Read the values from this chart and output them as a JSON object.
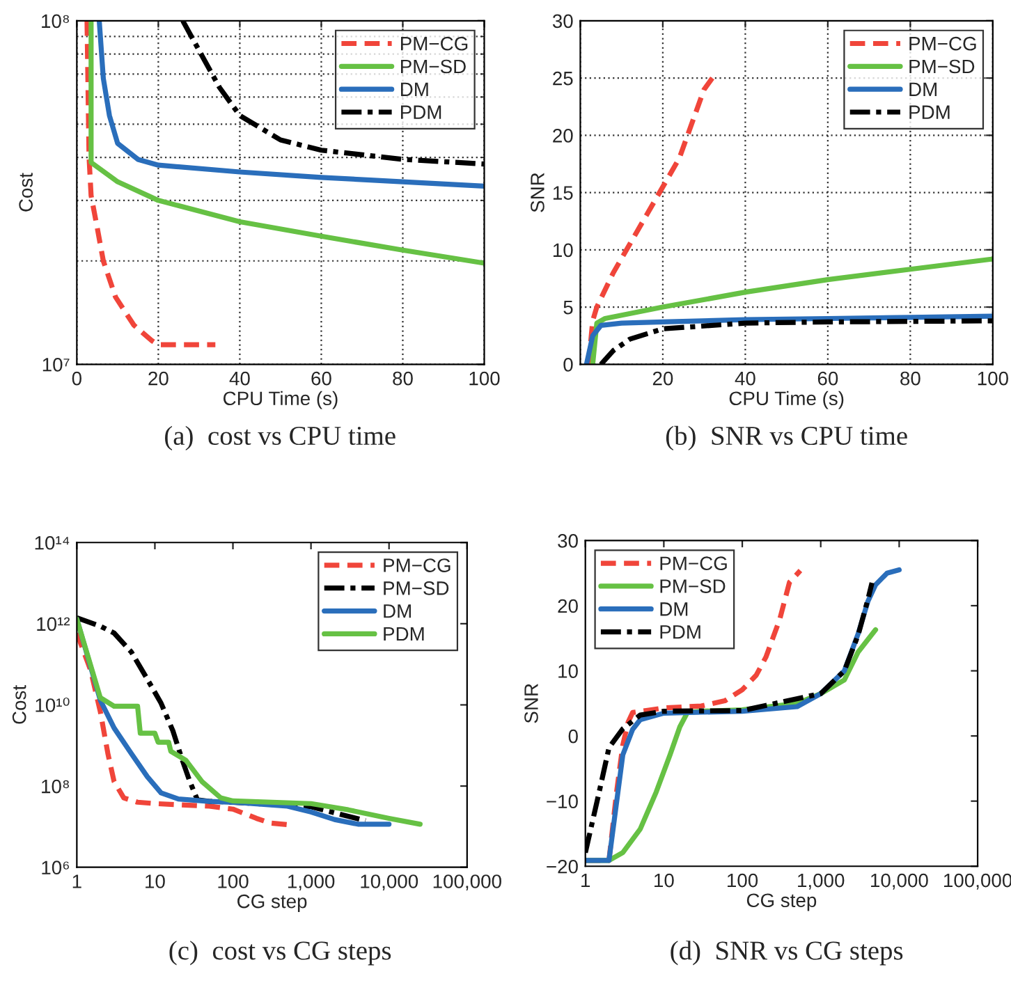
{
  "chart_data": [
    {
      "type": "line",
      "xlabel": "CPU Time (s)",
      "ylabel": "Cost",
      "log": "y",
      "grid": true,
      "legend": "top right",
      "xlim": [
        0,
        100
      ],
      "xticks": [
        0,
        20,
        40,
        60,
        80,
        100
      ],
      "ylim": [
        10000000,
        100000000
      ],
      "yticks": [
        {
          "value": 10000000,
          "label": "10⁷"
        },
        {
          "value": 100000000,
          "label": "10⁸"
        }
      ],
      "annotations": [
        "(a)  cost vs CPU time"
      ],
      "series": [
        {
          "name": "PM−CG",
          "color": "#f0453a",
          "line_style": "dashed",
          "x": [
            2.5,
            3,
            3.5,
            5,
            6.5,
            9.5,
            14,
            18.5,
            20,
            34
          ],
          "values": [
            100000000,
            40000000,
            31000000,
            25000000,
            20000000,
            15700000,
            13000000,
            11700000,
            11400000,
            11400000
          ]
        },
        {
          "name": "PM−SD",
          "color": "#66c144",
          "line_style": "solid",
          "x": [
            3.5,
            3.5,
            10,
            20,
            40,
            60,
            80,
            100
          ],
          "values": [
            100000000,
            38700000,
            34000000,
            30000000,
            26000000,
            23600000,
            21500000,
            19700000
          ]
        },
        {
          "name": "DM",
          "color": "#2a6ebb",
          "line_style": "solid",
          "x": [
            5.5,
            6.5,
            8,
            10,
            15,
            20,
            40,
            60,
            80,
            100
          ],
          "values": [
            100000000,
            68000000,
            53000000,
            44000000,
            39500000,
            38000000,
            36300000,
            35000000,
            34000000,
            33000000
          ]
        },
        {
          "name": "PDM",
          "color": "#000000",
          "line_style": "dashdot",
          "x": [
            26,
            30,
            35,
            40,
            50,
            60,
            80,
            100
          ],
          "values": [
            100000000,
            82000000,
            64000000,
            53000000,
            45000000,
            42000000,
            39500000,
            38300000
          ]
        }
      ]
    },
    {
      "type": "line",
      "xlabel": "CPU Time (s)",
      "ylabel": "SNR",
      "grid": true,
      "legend": "top right",
      "xlim": [
        0,
        100
      ],
      "xticks": [
        {
          "value": 0,
          "label": null
        },
        20,
        40,
        60,
        80,
        100
      ],
      "ylim": [
        0,
        30
      ],
      "yticks": [
        0,
        5,
        10,
        15,
        20,
        25,
        30
      ],
      "annotations": [
        "(b)  SNR vs CPU time"
      ],
      "series": [
        {
          "name": "PM−CG",
          "color": "#f0453a",
          "line_style": "dashed",
          "x": [
            2,
            3,
            4,
            8,
            12,
            16,
            20,
            24,
            26,
            28,
            30,
            32
          ],
          "values": [
            0,
            3.8,
            5,
            8,
            10.5,
            13,
            15.5,
            18,
            20,
            22,
            24,
            25
          ]
        },
        {
          "name": "PM−SD",
          "color": "#66c144",
          "line_style": "solid",
          "x": [
            3,
            4,
            6,
            20,
            40,
            60,
            80,
            100
          ],
          "values": [
            0,
            3.6,
            4,
            5,
            6.3,
            7.4,
            8.3,
            9.2
          ]
        },
        {
          "name": "DM",
          "color": "#2a6ebb",
          "line_style": "solid",
          "x": [
            1.5,
            3,
            5,
            10,
            20,
            40,
            60,
            80,
            100
          ],
          "values": [
            0,
            2.5,
            3.4,
            3.6,
            3.7,
            3.9,
            4.0,
            4.1,
            4.2
          ]
        },
        {
          "name": "PDM",
          "color": "#000000",
          "line_style": "dashdot",
          "x": [
            5,
            8,
            12,
            20,
            40,
            60,
            100
          ],
          "values": [
            0,
            1.2,
            2.2,
            3.1,
            3.6,
            3.7,
            3.8
          ]
        }
      ]
    },
    {
      "type": "line",
      "xlabel": "CG step",
      "ylabel": "Cost",
      "log": "xy",
      "grid": false,
      "legend": "top right",
      "xlim": [
        1,
        100000
      ],
      "xticks": [
        1,
        10,
        100,
        {
          "value": 1000,
          "label": "1,000"
        },
        {
          "value": 10000,
          "label": "10,000"
        },
        {
          "value": 100000,
          "label": "100,000"
        }
      ],
      "ylim": [
        1000000,
        100000000000000
      ],
      "yticks": [
        {
          "value": 1000000,
          "label": "10⁶"
        },
        {
          "value": 100000000,
          "label": "10⁸"
        },
        {
          "value": 10000000000,
          "label": "10¹⁰"
        },
        {
          "value": 1000000000000,
          "label": "10¹²"
        },
        {
          "value": 100000000000000,
          "label": "10¹⁴"
        }
      ],
      "annotations": [
        "(c)  cost vs CG steps"
      ],
      "series": [
        {
          "name": "PM−CG",
          "color": "#f0453a",
          "line_style": "dashed",
          "x": [
            1,
            1.5,
            2,
            2.5,
            3,
            4,
            6,
            10,
            50,
            100,
            200,
            300,
            500
          ],
          "values": [
            590000000000,
            72000000000,
            6800000000,
            630000000,
            130000000,
            51000000,
            40000000,
            37000000,
            32000000,
            27000000,
            16000000,
            12300000,
            11200000
          ]
        },
        {
          "name": "PM−SD",
          "color": "#000000",
          "line_style": "dashdot",
          "x": [
            1,
            2,
            3,
            5,
            8,
            12,
            17,
            22,
            28,
            35,
            50,
            100,
            1000,
            3000,
            5000
          ],
          "values": [
            1400000000000,
            870000000000,
            590000000000,
            200000000000,
            43000000000,
            11000000000,
            2300000000,
            490000000,
            130000000,
            46000000,
            42000000,
            40000000,
            31000000,
            18000000,
            14000000
          ]
        },
        {
          "name": "DM",
          "color": "#2a6ebb",
          "line_style": "solid",
          "x": [
            1,
            2,
            3,
            5,
            8,
            12,
            20,
            50,
            100,
            500,
            1000,
            2000,
            4000,
            10000
          ],
          "values": [
            1300000000000,
            13000000000,
            2700000000,
            630000000,
            170000000,
            68000000,
            48000000,
            42000000,
            40000000,
            32000000,
            23000000,
            15000000,
            11500000,
            11500000
          ]
        },
        {
          "name": "PDM",
          "color": "#66c144",
          "line_style": "solid",
          "x": [
            1,
            2,
            3,
            6,
            6.5,
            10,
            11,
            15,
            16,
            25,
            40,
            70,
            100,
            1000,
            3000,
            10000,
            25000
          ],
          "values": [
            1300000000000,
            15000000000,
            9300000000,
            9300000000,
            2000000000,
            2000000000,
            1200000000,
            1200000000,
            720000000,
            430000000,
            130000000,
            51000000,
            43000000,
            37000000,
            26000000,
            16000000,
            11500000
          ]
        }
      ]
    },
    {
      "type": "line",
      "xlabel": "CG step",
      "ylabel": "SNR",
      "log": "x",
      "grid": false,
      "legend": "top left",
      "xlim": [
        1,
        100000
      ],
      "xticks": [
        1,
        10,
        100,
        {
          "value": 1000,
          "label": "1,000"
        },
        {
          "value": 10000,
          "label": "10,000"
        },
        {
          "value": 100000,
          "label": "100,000"
        }
      ],
      "ylim": [
        -20,
        30
      ],
      "yticks": [
        {
          "value": -20,
          "label": "−20"
        },
        {
          "value": -10,
          "label": "−10"
        },
        0,
        10,
        20,
        30
      ],
      "annotations": [
        "(d)  SNR vs CG steps"
      ],
      "series": [
        {
          "name": "PM−CG",
          "color": "#f0453a",
          "line_style": "dashed",
          "x": [
            1,
            2,
            2.5,
            3,
            3.5,
            4,
            6,
            10,
            30,
            60,
            100,
            150,
            200,
            300,
            400,
            550
          ],
          "values": [
            -19.1,
            -19.1,
            -8.6,
            -1.4,
            2.1,
            3.6,
            3.9,
            4.3,
            4.6,
            5.4,
            7.1,
            9.3,
            12.1,
            17.9,
            23.6,
            25.4
          ]
        },
        {
          "name": "PM−SD",
          "color": "#66c144",
          "line_style": "solid",
          "x": [
            1,
            2,
            3,
            5,
            8,
            12,
            16,
            20,
            30,
            100,
            500,
            1000,
            2000,
            3000,
            5000
          ],
          "values": [
            -19.1,
            -19.1,
            -17.9,
            -14.3,
            -8.6,
            -2.9,
            1.4,
            3.6,
            3.8,
            4.0,
            5.0,
            6.5,
            8.6,
            12.9,
            16.3
          ]
        },
        {
          "name": "DM",
          "color": "#2a6ebb",
          "line_style": "solid",
          "x": [
            1,
            2,
            3,
            4,
            5,
            10,
            100,
            500,
            1000,
            2000,
            3000,
            4000,
            5000,
            7000,
            10000
          ],
          "values": [
            -19.1,
            -19.1,
            -2.9,
            1.0,
            2.5,
            3.5,
            3.8,
            4.5,
            6.5,
            10,
            15.7,
            20.7,
            23.2,
            25,
            25.5
          ]
        },
        {
          "name": "PDM",
          "color": "#000000",
          "line_style": "dashdot",
          "x": [
            1,
            1.5,
            2,
            3,
            5,
            10,
            100,
            1000,
            2000,
            3000,
            4000,
            4500
          ],
          "values": [
            -17.9,
            -8.6,
            -1.8,
            1.1,
            3.2,
            3.8,
            3.9,
            6.5,
            10,
            15.5,
            21,
            23.5
          ]
        }
      ]
    }
  ]
}
